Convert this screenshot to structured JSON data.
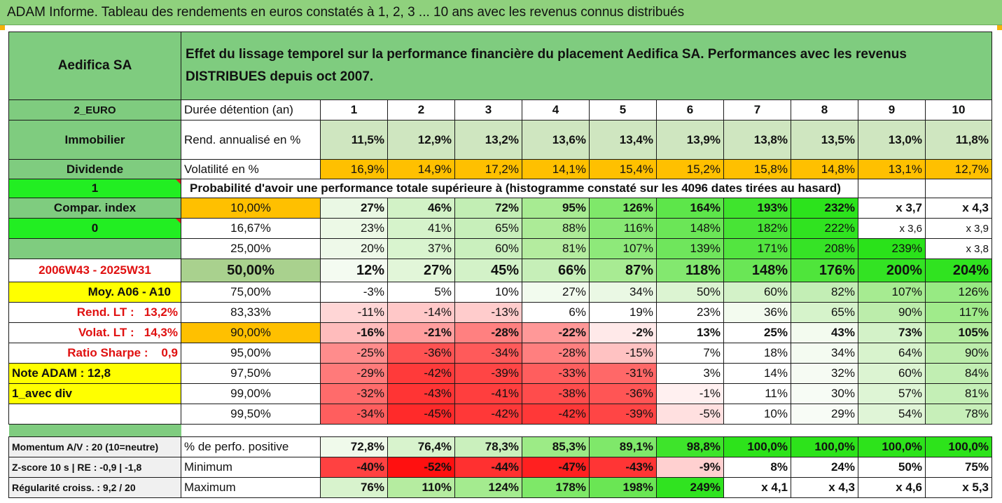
{
  "title": "ADAM Informe. Tableau des rendements en euros constatés à 1, 2, 3 ... 10 ans avec les revenus connus distribués",
  "header": {
    "fund_name": "Aedifica SA",
    "description": "Effet du lissage temporel sur la performance financière du placement Aedifica SA. Performances avec les revenus DISTRIBUES depuis oct 2007."
  },
  "colors": {
    "header_green": "#7fcc7f",
    "orange": "#ffc000",
    "yellow": "#ffff00",
    "bright_green": "#22ee22",
    "red_text": "#e01010"
  },
  "rows": [
    {
      "label": "2_EURO",
      "label_style": "green-sm",
      "desc": "Durée détention (an)",
      "desc_style": "left-bold-plain",
      "cells": [
        "1",
        "2",
        "3",
        "4",
        "5",
        "6",
        "7",
        "8",
        "9",
        "10"
      ],
      "cell_style": "header"
    },
    {
      "label": "Immobilier",
      "label_style": "green",
      "desc": "Rend. annualisé en %",
      "desc_style": "left",
      "cells": [
        "11,5%",
        "12,9%",
        "13,2%",
        "13,6%",
        "13,4%",
        "13,9%",
        "13,8%",
        "13,5%",
        "13,0%",
        "11,8%"
      ],
      "cell_style": "bold",
      "bgs": [
        "#cfe6c0",
        "#cfe6c0",
        "#cfe6c0",
        "#cfe6c0",
        "#cfe6c0",
        "#cfe6c0",
        "#cfe6c0",
        "#cfe6c0",
        "#cfe6c0",
        "#cfe6c0"
      ]
    },
    {
      "label": "Dividende",
      "label_style": "green",
      "desc": "Volatilité en %",
      "desc_style": "left",
      "cells": [
        "16,9%",
        "14,9%",
        "17,2%",
        "14,1%",
        "15,4%",
        "15,2%",
        "15,8%",
        "14,8%",
        "13,1%",
        "12,7%"
      ],
      "cell_style": "plain",
      "bgs": [
        "#ffc000",
        "#ffc000",
        "#ffc000",
        "#ffc000",
        "#ffc000",
        "#ffc000",
        "#ffc000",
        "#ffc000",
        "#ffc000",
        "#ffc000"
      ]
    },
    {
      "label": "1",
      "label_style": "bright",
      "prob_title": "Probabilité d'avoir une performance totale supérieure à (histogramme constaté sur les 4096 dates tirées au hasard)"
    },
    {
      "label": "Compar. index",
      "label_style": "green",
      "desc": "10,00%",
      "desc_style": "center-orange",
      "cells": [
        "27%",
        "46%",
        "72%",
        "95%",
        "126%",
        "164%",
        "193%",
        "232%",
        "x 3,7",
        "x 4,3"
      ],
      "cell_style": "bold",
      "bgs": [
        "#eaf8e4",
        "#d2f2c6",
        "#c2eeb4",
        "#a7eb92",
        "#7fe86a",
        "#5de64a",
        "#3fe42d",
        "#2ce31c",
        "#ffffff",
        "#ffffff"
      ]
    },
    {
      "label": "0",
      "label_style": "bright",
      "desc": "16,67%",
      "desc_style": "center",
      "cells": [
        "23%",
        "41%",
        "65%",
        "88%",
        "116%",
        "148%",
        "182%",
        "222%",
        "x 3,6",
        "x 3,9"
      ],
      "cell_style": "plain",
      "bgs": [
        "#ecf9e6",
        "#d6f3cb",
        "#c7efba",
        "#aceb97",
        "#88e874",
        "#6be657",
        "#48e436",
        "#30e320",
        "#ffffff",
        "#ffffff"
      ]
    },
    {
      "label": "",
      "label_style": "green",
      "desc": "25,00%",
      "desc_style": "center",
      "cells": [
        "20%",
        "37%",
        "60%",
        "81%",
        "107%",
        "139%",
        "171%",
        "208%",
        "239%",
        "x 3,8"
      ],
      "cell_style": "plain",
      "bgs": [
        "#eef9e9",
        "#d9f4cf",
        "#caf0be",
        "#b4ec9f",
        "#8ee97a",
        "#6fe65c",
        "#53e540",
        "#36e326",
        "#2ae21a",
        "#ffffff"
      ]
    },
    {
      "label": "2006W43 - 2025W31",
      "label_style": "red",
      "desc": "50,00%",
      "desc_style": "big-green",
      "cells": [
        "12%",
        "27%",
        "45%",
        "66%",
        "87%",
        "118%",
        "148%",
        "176%",
        "200%",
        "204%"
      ],
      "cell_style": "big",
      "bgs": [
        "#f4fbf1",
        "#e2f6d9",
        "#d3f2c8",
        "#c6efb8",
        "#a8eb93",
        "#83e86f",
        "#6ae656",
        "#4fe53b",
        "#33e323",
        "#30e320"
      ]
    },
    {
      "label": "Moy. A06 - A10",
      "label_style": "yellow-right",
      "desc": "75,00%",
      "desc_style": "center",
      "cells": [
        "-3%",
        "5%",
        "10%",
        "27%",
        "34%",
        "50%",
        "60%",
        "82%",
        "107%",
        "126%"
      ],
      "cell_style": "plain",
      "bgs": [
        "#ffffff",
        "#ffffff",
        "#ffffff",
        "#f2fbee",
        "#eaf8e4",
        "#dcf4d2",
        "#d3f2c8",
        "#c3eeb5",
        "#a6eb91",
        "#97ea83"
      ]
    },
    {
      "label": "Rend. LT :   13,2%",
      "label_style": "red-right",
      "desc": "83,33%",
      "desc_style": "center",
      "cells": [
        "-11%",
        "-14%",
        "-13%",
        "6%",
        "19%",
        "23%",
        "36%",
        "65%",
        "90%",
        "117%"
      ],
      "cell_style": "plain",
      "bgs": [
        "#ffd6d6",
        "#ffc8c8",
        "#ffcccc",
        "#ffffff",
        "#ffffff",
        "#ffffff",
        "#f3fbef",
        "#d6f3cb",
        "#bcedab",
        "#a0eb8b"
      ]
    },
    {
      "label": "Volat. LT :   14,3%",
      "label_style": "red-right-orange",
      "desc": "90,00%",
      "desc_style": "center-orange",
      "cells": [
        "-16%",
        "-21%",
        "-28%",
        "-22%",
        "-2%",
        "13%",
        "25%",
        "43%",
        "73%",
        "105%"
      ],
      "cell_style": "bold",
      "bgs": [
        "#ffbcbc",
        "#ff9e9e",
        "#ff8080",
        "#ff9898",
        "#ffe9e9",
        "#ffffff",
        "#ffffff",
        "#f3fbef",
        "#d3f2c8",
        "#b3ec9f"
      ]
    },
    {
      "label": "Ratio Sharpe :    0,9",
      "label_style": "red-right",
      "desc": "95,00%",
      "desc_style": "center",
      "cells": [
        "-25%",
        "-36%",
        "-34%",
        "-28%",
        "-15%",
        "7%",
        "18%",
        "34%",
        "64%",
        "90%"
      ],
      "cell_style": "plain",
      "bgs": [
        "#ff8c8c",
        "#ff5252",
        "#ff5a5a",
        "#ff7f7f",
        "#ffc2c2",
        "#ffffff",
        "#ffffff",
        "#f4fbf1",
        "#d8f3cd",
        "#bcedab"
      ]
    },
    {
      "label": "Note ADAM : 12,8",
      "label_style": "yellow-left",
      "desc": "97,50%",
      "desc_style": "center",
      "cells": [
        "-29%",
        "-42%",
        "-39%",
        "-33%",
        "-31%",
        "3%",
        "14%",
        "32%",
        "60%",
        "84%"
      ],
      "cell_style": "plain",
      "bgs": [
        "#ff7a7a",
        "#ff3a3a",
        "#ff4545",
        "#ff5e5e",
        "#ff6868",
        "#ffffff",
        "#ffffff",
        "#f6fbf3",
        "#dcf4d2",
        "#c1eeb2"
      ]
    },
    {
      "label": "1_avec div",
      "label_style": "yellow-left",
      "desc": "99,00%",
      "desc_style": "center",
      "cells": [
        "-32%",
        "-43%",
        "-41%",
        "-38%",
        "-36%",
        "-1%",
        "11%",
        "30%",
        "57%",
        "81%"
      ],
      "cell_style": "plain",
      "bgs": [
        "#ff6b6b",
        "#ff3434",
        "#ff3e3e",
        "#ff4c4c",
        "#ff5555",
        "#fff0f0",
        "#ffffff",
        "#f7fcf5",
        "#def5d5",
        "#c4efb6"
      ]
    },
    {
      "label": "",
      "label_style": "blank",
      "desc": "99,50%",
      "desc_style": "center",
      "cells": [
        "-34%",
        "-45%",
        "-42%",
        "-42%",
        "-39%",
        "-5%",
        "10%",
        "29%",
        "54%",
        "78%"
      ],
      "cell_style": "plain",
      "bgs": [
        "#ff5e5e",
        "#ff2a2a",
        "#ff3838",
        "#ff3838",
        "#ff4545",
        "#ffe0e0",
        "#ffffff",
        "#f8fcf6",
        "#e0f5d7",
        "#c7efb9"
      ]
    }
  ],
  "bottom_rows": [
    {
      "label": "Momentum A/V : 20 (10=neutre)",
      "desc": "% de perfo. positive",
      "cells": [
        "72,8%",
        "76,4%",
        "78,3%",
        "85,3%",
        "89,1%",
        "98,8%",
        "100,0%",
        "100,0%",
        "100,0%",
        "100,0%"
      ],
      "bgs": [
        "#f0faeb",
        "#d8f3cd",
        "#caf0bd",
        "#9ceb86",
        "#7fe86a",
        "#3ee42b",
        "#2de31b",
        "#2de31b",
        "#2de31b",
        "#2de31b"
      ]
    },
    {
      "label": "Z-score 10 s  |  RE : -0,9  |  -1,8",
      "desc": "Minimum",
      "cells": [
        "-40%",
        "-52%",
        "-44%",
        "-47%",
        "-43%",
        "-9%",
        "8%",
        "24%",
        "50%",
        "75%"
      ],
      "bgs": [
        "#ff4141",
        "#ff1010",
        "#ff3030",
        "#ff2020",
        "#ff3535",
        "#ffd0d0",
        "#ffffff",
        "#ffffff",
        "#ffffff",
        "#ffffff"
      ]
    },
    {
      "label": "Régularité croiss. : 9,2 / 20",
      "desc": "Maximum",
      "cells": [
        "76%",
        "110%",
        "124%",
        "178%",
        "198%",
        "249%",
        "x 4,1",
        "x 4,3",
        "x 4,6",
        "x 5,3"
      ],
      "bgs": [
        "#d8f3cd",
        "#b5ec a0",
        "#a4eb8f",
        "#7ee868",
        "#6ae654",
        "#30e320",
        "#ffffff",
        "#ffffff",
        "#ffffff",
        "#ffffff"
      ]
    }
  ]
}
